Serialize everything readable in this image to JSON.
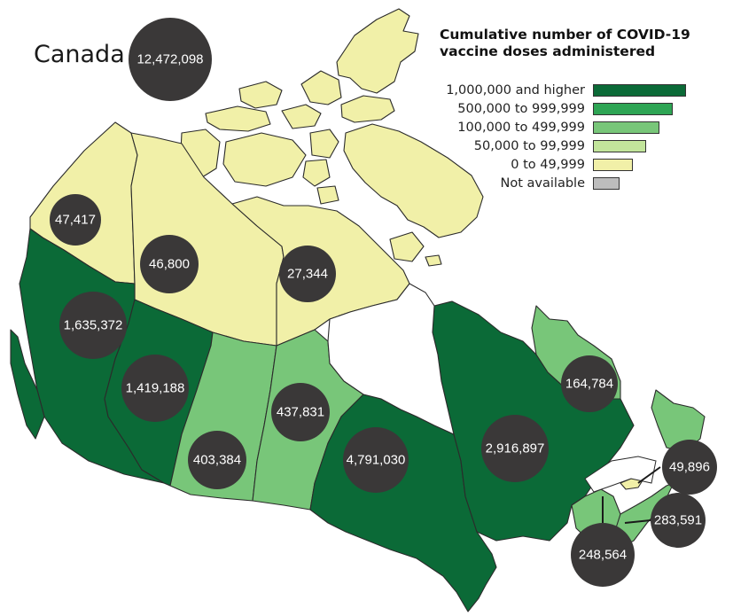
{
  "map": {
    "country": "Canada",
    "country_total": "12,472,098",
    "legend": {
      "title_line1": "Cumulative number of COVID-19",
      "title_line2": "vaccine doses administered",
      "classes": [
        {
          "label": "1,000,000 and higher",
          "color": "#0b6a37"
        },
        {
          "label": "500,000 to 999,999",
          "color": "#2ea554"
        },
        {
          "label": "100,000 to 499,999",
          "color": "#78c679"
        },
        {
          "label": "50,000 to 99,999",
          "color": "#c2e59b"
        },
        {
          "label": "0 to 49,999",
          "color": "#f1f0a8"
        },
        {
          "label": "Not available",
          "color": "#bdbdbd"
        }
      ]
    },
    "regions": [
      {
        "id": "yukon",
        "value": "47,417",
        "class": 4
      },
      {
        "id": "northwest-territories",
        "value": "46,800",
        "class": 4
      },
      {
        "id": "nunavut",
        "value": "27,344",
        "class": 4
      },
      {
        "id": "british-columbia",
        "value": "1,635,372",
        "class": 0
      },
      {
        "id": "alberta",
        "value": "1,419,188",
        "class": 0
      },
      {
        "id": "saskatchewan",
        "value": "403,384",
        "class": 2
      },
      {
        "id": "manitoba",
        "value": "437,831",
        "class": 2
      },
      {
        "id": "ontario",
        "value": "4,791,030",
        "class": 0
      },
      {
        "id": "quebec",
        "value": "2,916,897",
        "class": 0
      },
      {
        "id": "newfoundland-and-labrador",
        "value": "164,784",
        "class": 2
      },
      {
        "id": "prince-edward-island",
        "value": "49,896",
        "class": 4
      },
      {
        "id": "nova-scotia",
        "value": "283,591",
        "class": 2
      },
      {
        "id": "new-brunswick",
        "value": "248,564",
        "class": 2
      }
    ]
  }
}
